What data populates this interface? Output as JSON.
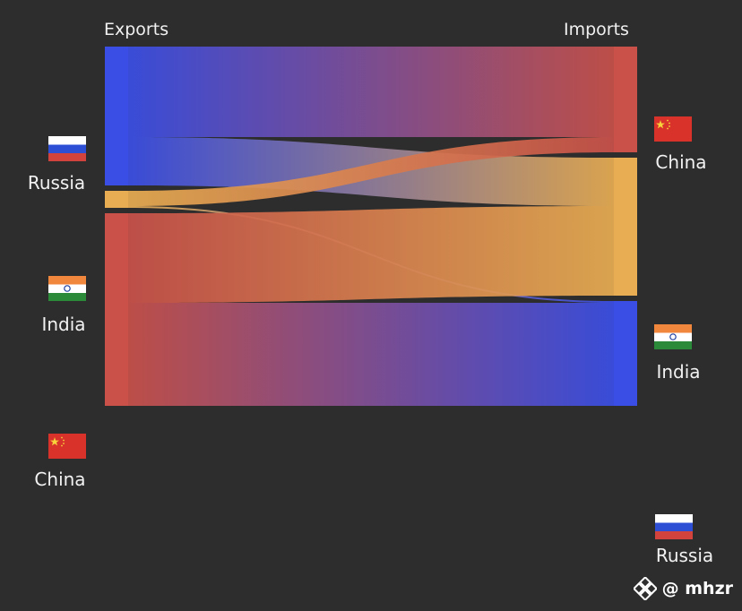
{
  "headers": {
    "exports": "Exports",
    "imports": "Imports"
  },
  "exporters": [
    {
      "id": "russia",
      "label": "Russia",
      "color": "#3a4ee6"
    },
    {
      "id": "india",
      "label": "India",
      "color": "#e8ad52"
    },
    {
      "id": "china",
      "label": "China",
      "color": "#c9514a"
    }
  ],
  "importers": [
    {
      "id": "china",
      "label": "China",
      "color": "#c9514a"
    },
    {
      "id": "india",
      "label": "India",
      "color": "#e8ad52"
    },
    {
      "id": "russia",
      "label": "Russia",
      "color": "#3a4ee6"
    }
  ],
  "flows": [
    {
      "from": "russia",
      "to": "china",
      "value": 101
    },
    {
      "from": "russia",
      "to": "india",
      "value": 54
    },
    {
      "from": "india",
      "to": "china",
      "value": 17
    },
    {
      "from": "india",
      "to": "russia",
      "value": 2
    },
    {
      "from": "china",
      "to": "india",
      "value": 100
    },
    {
      "from": "china",
      "to": "russia",
      "value": 115
    }
  ],
  "watermark": {
    "text": "@ mhzr",
    "icon": "diamond-logo-icon"
  }
}
